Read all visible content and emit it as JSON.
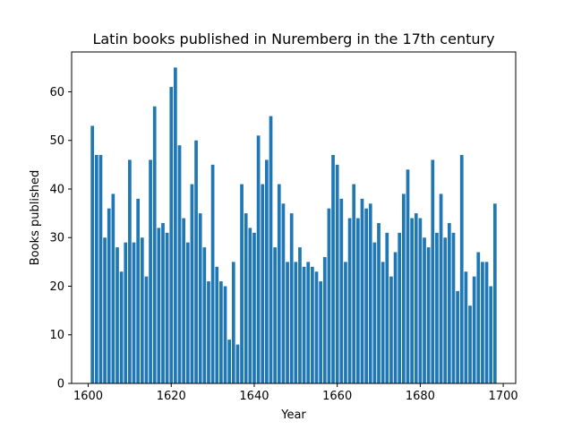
{
  "chart_data": {
    "type": "bar",
    "title": "Latin books published in Nuremberg in the 17th century",
    "xlabel": "Year",
    "ylabel": "Books published",
    "xlim": [
      1596,
      1703
    ],
    "ylim": [
      0,
      68.2
    ],
    "xticks": [
      1600,
      1620,
      1640,
      1660,
      1680,
      1700
    ],
    "yticks": [
      0,
      10,
      20,
      30,
      40,
      50,
      60
    ],
    "bar_color": "#1f77b4",
    "start_year": 1601,
    "values": [
      53,
      47,
      47,
      30,
      36,
      39,
      28,
      23,
      29,
      46,
      29,
      38,
      30,
      22,
      46,
      57,
      32,
      33,
      31,
      61,
      65,
      49,
      34,
      29,
      41,
      50,
      35,
      28,
      21,
      45,
      24,
      21,
      20,
      9,
      25,
      8,
      41,
      35,
      32,
      31,
      51,
      41,
      46,
      55,
      28,
      41,
      37,
      25,
      35,
      25,
      28,
      24,
      25,
      24,
      23,
      21,
      26,
      36,
      47,
      45,
      38,
      25,
      34,
      41,
      34,
      38,
      36,
      37,
      29,
      33,
      25,
      31,
      22,
      27,
      31,
      39,
      44,
      34,
      35,
      34,
      30,
      28,
      46,
      31,
      39,
      30,
      33,
      31,
      19,
      47,
      23,
      16,
      22,
      27,
      25,
      25,
      20,
      37
    ]
  }
}
